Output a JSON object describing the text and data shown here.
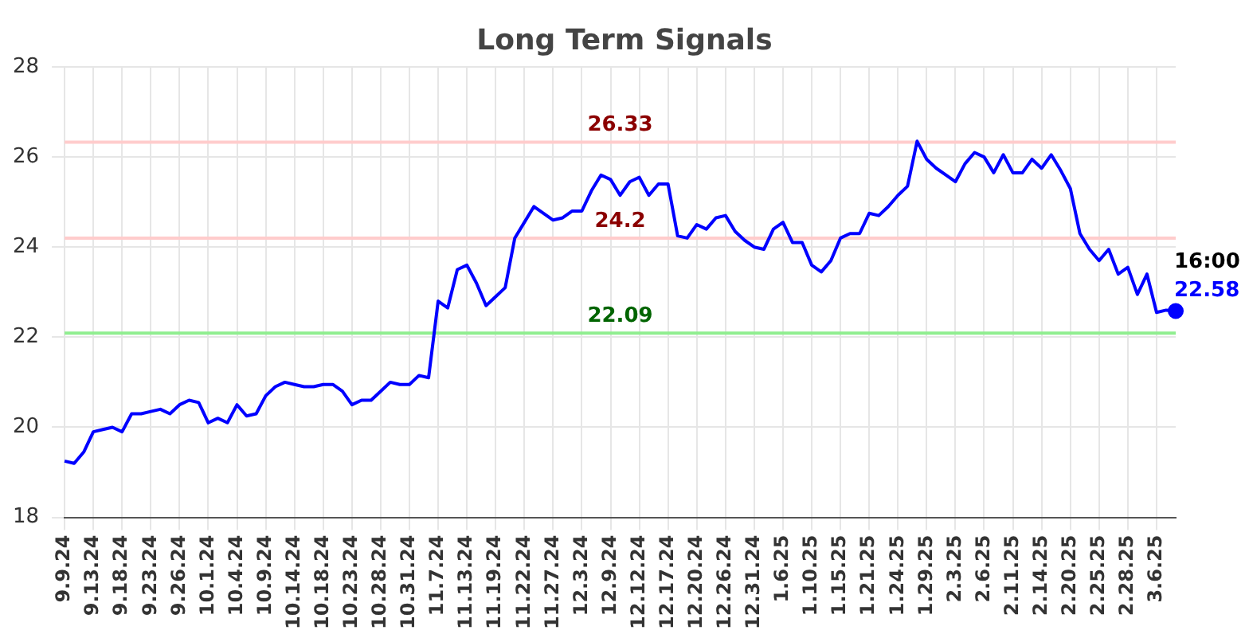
{
  "chart_data": {
    "type": "line",
    "title": "Long Term Signals",
    "categories": [
      "9.9.24",
      null,
      null,
      "9.13.24",
      null,
      null,
      "9.18.24",
      null,
      null,
      "9.23.24",
      null,
      null,
      "9.26.24",
      null,
      null,
      "10.1.24",
      null,
      null,
      "10.4.24",
      null,
      null,
      "10.9.24",
      null,
      null,
      "10.14.24",
      null,
      null,
      "10.18.24",
      null,
      null,
      "10.23.24",
      null,
      null,
      "10.28.24",
      null,
      null,
      "10.31.24",
      null,
      null,
      "11.7.24",
      null,
      null,
      "11.13.24",
      null,
      null,
      "11.19.24",
      null,
      null,
      "11.22.24",
      null,
      null,
      "11.27.24",
      null,
      null,
      "12.3.24",
      null,
      null,
      "12.9.24",
      null,
      null,
      "12.12.24",
      null,
      null,
      "12.17.24",
      null,
      null,
      "12.20.24",
      null,
      null,
      "12.26.24",
      null,
      null,
      "12.31.24",
      null,
      null,
      "1.6.25",
      null,
      null,
      "1.10.25",
      null,
      null,
      "1.15.25",
      null,
      null,
      "1.21.25",
      null,
      null,
      "1.24.25",
      null,
      null,
      "1.29.25",
      null,
      null,
      "2.3.25",
      null,
      null,
      "2.6.25",
      null,
      null,
      "2.11.25",
      null,
      null,
      "2.14.25",
      null,
      null,
      "2.20.25",
      null,
      null,
      "2.25.25",
      null,
      null,
      "2.28.25",
      null,
      null,
      "3.6.25",
      null,
      null
    ],
    "series": [
      {
        "type": "line",
        "color": "#0000ff",
        "values": [
          19.25,
          19.2,
          19.45,
          19.9,
          19.95,
          20.0,
          19.9,
          20.3,
          20.3,
          20.35,
          20.4,
          20.3,
          20.5,
          20.6,
          20.55,
          20.1,
          20.2,
          20.1,
          20.5,
          20.25,
          20.3,
          20.7,
          20.9,
          21.0,
          20.95,
          20.9,
          20.9,
          20.95,
          20.95,
          20.8,
          20.5,
          20.6,
          20.6,
          20.8,
          21.0,
          20.95,
          20.95,
          21.15,
          21.1,
          22.8,
          22.65,
          23.5,
          23.6,
          23.2,
          22.7,
          22.9,
          23.1,
          24.2,
          24.55,
          24.9,
          24.75,
          24.6,
          24.65,
          24.8,
          24.8,
          25.25,
          25.6,
          25.5,
          25.15,
          25.45,
          25.55,
          25.15,
          25.4,
          25.4,
          24.25,
          24.2,
          24.5,
          24.4,
          24.65,
          24.7,
          24.35,
          24.15,
          24.0,
          23.95,
          24.4,
          24.55,
          24.1,
          24.1,
          23.6,
          23.45,
          23.7,
          24.2,
          24.3,
          24.3,
          24.75,
          24.7,
          24.9,
          25.15,
          25.35,
          26.35,
          25.95,
          25.75,
          25.6,
          25.45,
          25.85,
          26.1,
          26.0,
          25.65,
          26.05,
          25.65,
          25.65,
          25.95,
          25.75,
          26.05,
          25.7,
          25.3,
          24.3,
          23.95,
          23.7,
          23.95,
          23.4,
          23.55,
          22.95,
          23.4,
          22.55,
          22.6,
          22.58
        ]
      },
      {
        "type": "scatter",
        "color": "#0000ff",
        "marker": "circle",
        "values": [
          null,
          null,
          null,
          null,
          null,
          null,
          null,
          null,
          null,
          null,
          null,
          null,
          null,
          null,
          null,
          null,
          null,
          null,
          null,
          null,
          null,
          null,
          null,
          null,
          null,
          null,
          null,
          null,
          null,
          null,
          null,
          null,
          null,
          null,
          null,
          null,
          null,
          null,
          null,
          null,
          null,
          null,
          null,
          null,
          null,
          null,
          null,
          null,
          null,
          null,
          null,
          null,
          null,
          null,
          null,
          null,
          null,
          null,
          null,
          null,
          null,
          null,
          null,
          null,
          null,
          null,
          null,
          null,
          null,
          null,
          null,
          null,
          null,
          null,
          null,
          null,
          null,
          null,
          null,
          null,
          null,
          null,
          null,
          null,
          null,
          null,
          null,
          null,
          null,
          null,
          null,
          null,
          null,
          null,
          null,
          null,
          null,
          null,
          null,
          null,
          null,
          null,
          null,
          null,
          null,
          null,
          null,
          null,
          null,
          null,
          null,
          null,
          null,
          null,
          null,
          null,
          22.58
        ],
        "value_labels": [
          null,
          null,
          null,
          null,
          null,
          null,
          null,
          null,
          null,
          null,
          null,
          null,
          null,
          null,
          null,
          null,
          null,
          null,
          null,
          null,
          null,
          null,
          null,
          null,
          null,
          null,
          null,
          null,
          null,
          null,
          null,
          null,
          null,
          null,
          null,
          null,
          null,
          null,
          null,
          null,
          null,
          null,
          null,
          null,
          null,
          null,
          null,
          null,
          null,
          null,
          null,
          null,
          null,
          null,
          null,
          null,
          null,
          null,
          null,
          null,
          null,
          null,
          null,
          null,
          null,
          null,
          null,
          null,
          null,
          null,
          null,
          null,
          null,
          null,
          null,
          null,
          null,
          null,
          null,
          null,
          null,
          null,
          null,
          null,
          null,
          null,
          null,
          null,
          null,
          null,
          null,
          null,
          null,
          null,
          null,
          null,
          null,
          null,
          null,
          null,
          null,
          null,
          null,
          null,
          null,
          null,
          null,
          null,
          null,
          null,
          null,
          null,
          null,
          null,
          null,
          null,
          "22.58"
        ]
      }
    ],
    "annotations": [
      "16:00"
    ],
    "ref_lines": [
      {
        "axis": "y",
        "value": 26.33,
        "label": "26.33",
        "color": "#ffcccc"
      },
      {
        "axis": "y",
        "value": 24.2,
        "label": "24.2",
        "color": "#ffcccc"
      },
      {
        "axis": "y",
        "value": 22.09,
        "label": "22.09",
        "color": "#90ee90"
      }
    ],
    "ylim": [
      18,
      28
    ],
    "yticks": [
      18,
      20,
      22,
      24,
      26,
      28
    ],
    "grid": true,
    "legend": false,
    "marker": "none",
    "line_style": "solid"
  }
}
